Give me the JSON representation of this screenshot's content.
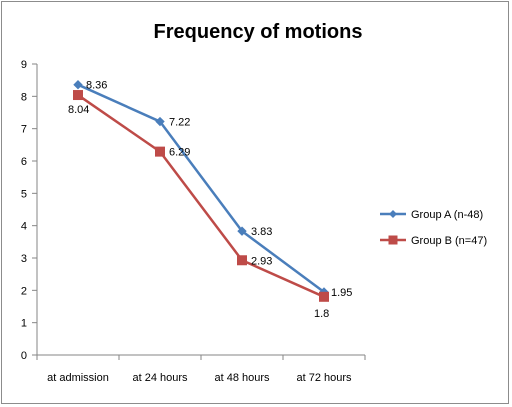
{
  "chart_data": {
    "type": "line",
    "title": "Frequency of motions",
    "categories": [
      "at admission",
      "at 24 hours",
      "at 48 hours",
      "at 72 hours"
    ],
    "series": [
      {
        "name": "Group A (n-48)",
        "values": [
          8.36,
          7.22,
          3.83,
          1.95
        ],
        "labels": [
          "8.36",
          "7.22",
          "3.83",
          "1.95"
        ],
        "color": "#4a7ebb",
        "marker": "diamond"
      },
      {
        "name": "Group B (n=47)",
        "values": [
          8.04,
          6.29,
          2.93,
          1.8
        ],
        "labels": [
          "8.04",
          "6.29",
          "2.93",
          "1.8"
        ],
        "color": "#be4b48",
        "marker": "square"
      }
    ],
    "ylim": [
      0,
      9
    ],
    "yticks": [
      0,
      1,
      2,
      3,
      4,
      5,
      6,
      7,
      8,
      9
    ],
    "grid": false,
    "legend": "right"
  }
}
